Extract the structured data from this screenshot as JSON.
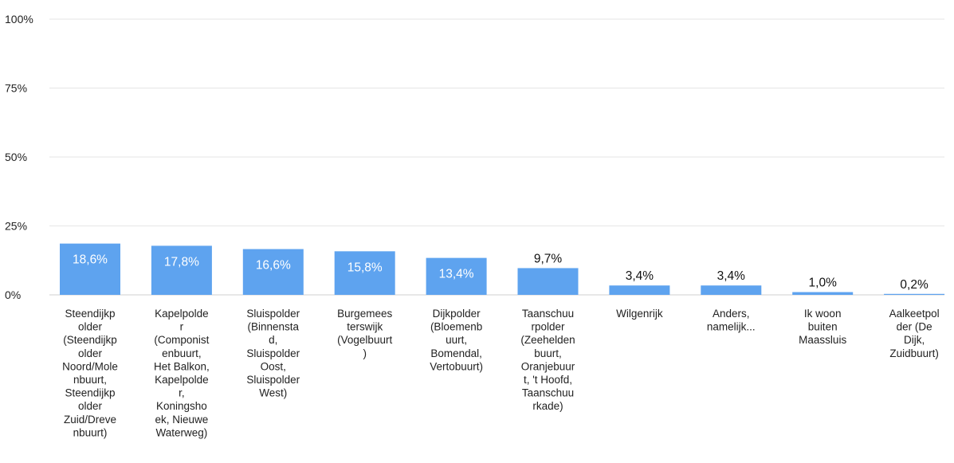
{
  "chart_data": {
    "type": "bar",
    "categories": [
      [
        "Steendijkp",
        "older",
        "(Steendijkp",
        "older",
        "Noord/Mole",
        "nbuurt,",
        "Steendijkp",
        "older",
        "Zuid/Dreve",
        "nbuurt)"
      ],
      [
        "Kapelpolde",
        "r",
        "(Componist",
        "enbuurt,",
        "Het Balkon,",
        "Kapelpolde",
        "r,",
        "Koningsho",
        "ek, Nieuwe",
        "Waterweg)"
      ],
      [
        "Sluispolder",
        "(Binnensta",
        "d,",
        "Sluispolder",
        "Oost,",
        "Sluispolder",
        "West)"
      ],
      [
        "Burgemees",
        "terswijk",
        "(Vogelbuurt",
        ")"
      ],
      [
        "Dijkpolder",
        "(Bloemenb",
        "uurt,",
        "Bomendal,",
        "Vertobuurt)"
      ],
      [
        "Taanschuu",
        "rpolder",
        "(Zeehelden",
        "buurt,",
        "Oranjebuur",
        "t, 't Hoofd,",
        "Taanschuu",
        "rkade)"
      ],
      [
        "Wilgenrijk"
      ],
      [
        "Anders,",
        "namelijk..."
      ],
      [
        "Ik woon",
        "buiten",
        "Maassluis"
      ],
      [
        "Aalkeetpol",
        "der (De",
        "Dijk,",
        "Zuidbuurt)"
      ]
    ],
    "values": [
      18.6,
      17.8,
      16.6,
      15.8,
      13.4,
      9.7,
      3.4,
      3.4,
      1.0,
      0.2
    ],
    "data_labels": [
      "18,6%",
      "17,8%",
      "16,6%",
      "15,8%",
      "13,4%",
      "9,7%",
      "3,4%",
      "3,4%",
      "1,0%",
      "0,2%"
    ],
    "y_ticks": [
      {
        "value": 0,
        "label": "0%"
      },
      {
        "value": 25,
        "label": "25%"
      },
      {
        "value": 50,
        "label": "50%"
      },
      {
        "value": 75,
        "label": "75%"
      },
      {
        "value": 100,
        "label": "100%"
      }
    ],
    "ylim": [
      0,
      100
    ],
    "grid": true,
    "bar_color": "#5ea3ef",
    "label_color_inside": "#ffffff",
    "label_color_outside": "#111111"
  }
}
